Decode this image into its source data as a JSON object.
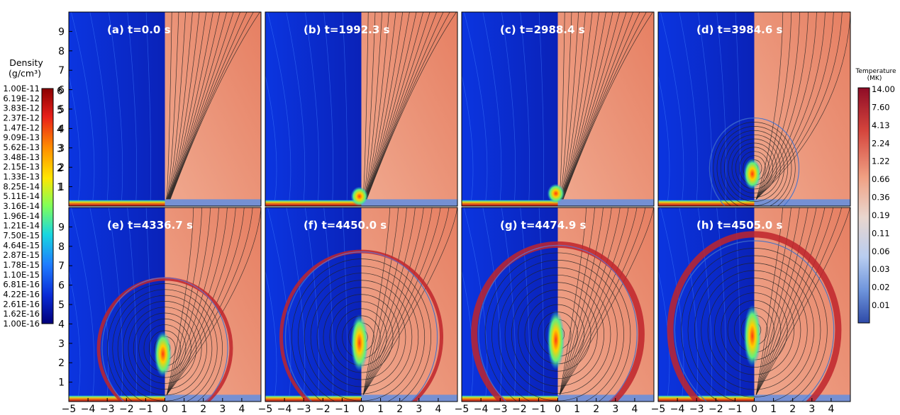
{
  "chart_data": {
    "type": "heatmap",
    "x_ticks": [
      "−5",
      "−4",
      "−3",
      "−2",
      "−1",
      "0",
      "1",
      "2",
      "3",
      "4"
    ],
    "y_ticks": [
      "1",
      "2",
      "3",
      "4",
      "5",
      "6",
      "7",
      "8",
      "9"
    ],
    "xlim": [
      -5,
      5
    ],
    "ylim": [
      0,
      10
    ],
    "panels": [
      {
        "label": "(a)  t=0.0 s",
        "time_s": 0.0,
        "eruption_height": 0.0
      },
      {
        "label": "(b)  t=1992.3 s",
        "time_s": 1992.3,
        "eruption_height": 0.25
      },
      {
        "label": "(c)  t=2988.4 s",
        "time_s": 2988.4,
        "eruption_height": 0.9
      },
      {
        "label": "(d)  t=3984.6 s",
        "time_s": 3984.6,
        "eruption_height": 2.3
      },
      {
        "label": "(e)  t=4336.7 s",
        "time_s": 4336.7,
        "eruption_height": 3.4
      },
      {
        "label": "(f)  t=4450.0 s",
        "time_s": 4450.0,
        "eruption_height": 4.2
      },
      {
        "label": "(g)  t=4474.9 s",
        "time_s": 4474.9,
        "eruption_height": 4.4
      },
      {
        "label": "(h)  t=4505.0 s",
        "time_s": 4505.0,
        "eruption_height": 4.7
      }
    ],
    "density_colorbar": {
      "title": "Density",
      "unit": "(g/cm³)",
      "labels": [
        "1.00E-11",
        "6.19E-12",
        "3.83E-12",
        "2.37E-12",
        "1.47E-12",
        "9.09E-13",
        "5.62E-13",
        "3.48E-13",
        "2.15E-13",
        "1.33E-13",
        "8.25E-14",
        "5.11E-14",
        "3.16E-14",
        "1.96E-14",
        "1.21E-14",
        "7.50E-15",
        "4.64E-15",
        "2.87E-15",
        "1.78E-15",
        "1.10E-15",
        "6.81E-16",
        "4.22E-16",
        "2.61E-16",
        "1.62E-16",
        "1.00E-16"
      ],
      "ticks": [
        "1",
        "2",
        "3",
        "4",
        "5",
        "6"
      ]
    },
    "temperature_colorbar": {
      "title": "Temperature",
      "unit": "(MK)",
      "labels": [
        "14.00",
        "7.60",
        "4.13",
        "2.24",
        "1.22",
        "0.66",
        "0.36",
        "0.19",
        "0.11",
        "0.06",
        "0.03",
        "0.02",
        "0.01"
      ]
    },
    "colors": {
      "density_bg": "#0a2bd6",
      "temp_bg": "#ee9a7f",
      "temp_hot": "#c0242c",
      "field_line": "#222222"
    }
  }
}
